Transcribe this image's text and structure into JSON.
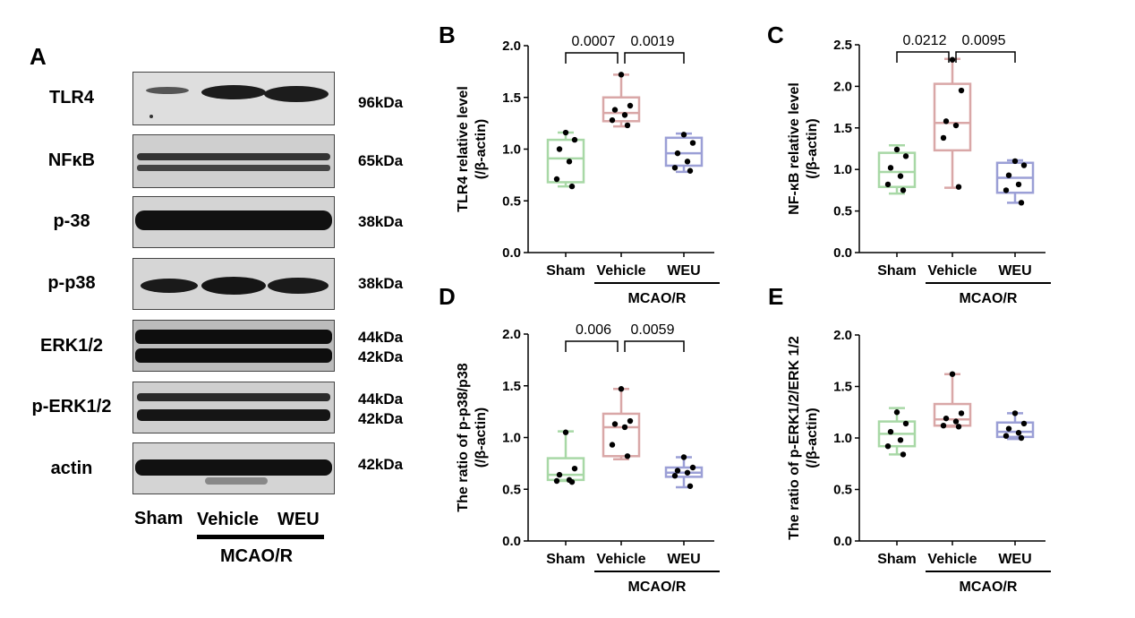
{
  "panel_a": {
    "letter": "A",
    "rows": [
      {
        "protein": "TLR4",
        "kda": [
          "96kDa"
        ]
      },
      {
        "protein": "NFκB",
        "kda": [
          "65kDa"
        ]
      },
      {
        "protein": "p-38",
        "kda": [
          "38kDa"
        ]
      },
      {
        "protein": "p-p38",
        "kda": [
          "38kDa"
        ]
      },
      {
        "protein": "ERK1/2",
        "kda": [
          "44kDa",
          "42kDa"
        ]
      },
      {
        "protein": "p-ERK1/2",
        "kda": [
          "44kDa",
          "42kDa"
        ]
      },
      {
        "protein": "actin",
        "kda": [
          "42kDa"
        ]
      }
    ],
    "lanes": [
      "Sham",
      "Vehicle",
      "WEU"
    ],
    "group_label": "MCAO/R"
  },
  "chart_data": [
    {
      "panel": "B",
      "type": "box",
      "ylabel_line1": "TLR4 relative level",
      "ylabel_line2": "(/β-actin)",
      "ylim": [
        0,
        2.0
      ],
      "yticks": [
        "0.0",
        "0.5",
        "1.0",
        "1.5",
        "2.0"
      ],
      "categories": [
        "Sham",
        "Vehicle",
        "WEU"
      ],
      "group_label": "MCAO/R",
      "colors": [
        "#a8d8a6",
        "#d9a7a7",
        "#9b9fd6"
      ],
      "boxes": [
        {
          "min": 0.64,
          "q1": 0.68,
          "median": 0.91,
          "q3": 1.09,
          "max": 1.16,
          "points": [
            1.16,
            1.09,
            1.0,
            0.88,
            0.71,
            0.64
          ]
        },
        {
          "min": 1.22,
          "q1": 1.27,
          "median": 1.35,
          "q3": 1.5,
          "max": 1.72,
          "points": [
            1.72,
            1.42,
            1.38,
            1.33,
            1.28,
            1.23
          ]
        },
        {
          "min": 0.78,
          "q1": 0.84,
          "median": 0.96,
          "q3": 1.11,
          "max": 1.15,
          "points": [
            1.14,
            1.06,
            0.96,
            0.88,
            0.82,
            0.79
          ]
        }
      ],
      "comparisons": [
        {
          "from": 0,
          "to": 1,
          "label": "0.0007"
        },
        {
          "from": 1,
          "to": 2,
          "label": "0.0019"
        }
      ]
    },
    {
      "panel": "C",
      "type": "box",
      "ylabel_line1": "NF-κB relative level",
      "ylabel_line2": "(/β-actin)",
      "ylim": [
        0,
        2.5
      ],
      "yticks": [
        "0.0",
        "0.5",
        "1.0",
        "1.5",
        "2.0",
        "2.5"
      ],
      "categories": [
        "Sham",
        "Vehicle",
        "WEU"
      ],
      "group_label": "MCAO/R",
      "colors": [
        "#a8d8a6",
        "#d9a7a7",
        "#9b9fd6"
      ],
      "boxes": [
        {
          "min": 0.71,
          "q1": 0.79,
          "median": 0.97,
          "q3": 1.2,
          "max": 1.29,
          "points": [
            1.24,
            1.16,
            1.02,
            0.92,
            0.82,
            0.75
          ]
        },
        {
          "min": 0.78,
          "q1": 1.23,
          "median": 1.56,
          "q3": 2.03,
          "max": 2.33,
          "points": [
            2.32,
            1.95,
            1.58,
            1.53,
            1.38,
            0.79
          ]
        },
        {
          "min": 0.6,
          "q1": 0.72,
          "median": 0.9,
          "q3": 1.08,
          "max": 1.11,
          "points": [
            1.1,
            1.05,
            0.93,
            0.82,
            0.75,
            0.6
          ]
        }
      ],
      "comparisons": [
        {
          "from": 0,
          "to": 1,
          "label": "0.0212"
        },
        {
          "from": 1,
          "to": 2,
          "label": "0.0095"
        }
      ]
    },
    {
      "panel": "D",
      "type": "box",
      "ylabel_line1": "The ratio of p-p38/p38",
      "ylabel_line2": "(/β-actin)",
      "ylim": [
        0,
        2.0
      ],
      "yticks": [
        "0.0",
        "0.5",
        "1.0",
        "1.5",
        "2.0"
      ],
      "categories": [
        "Sham",
        "Vehicle",
        "WEU"
      ],
      "group_label": "MCAO/R",
      "colors": [
        "#a8d8a6",
        "#d9a7a7",
        "#9b9fd6"
      ],
      "boxes": [
        {
          "min": 0.58,
          "q1": 0.59,
          "median": 0.64,
          "q3": 0.8,
          "max": 1.06,
          "points": [
            1.05,
            0.7,
            0.64,
            0.59,
            0.58,
            0.57
          ]
        },
        {
          "min": 0.79,
          "q1": 0.82,
          "median": 1.1,
          "q3": 1.23,
          "max": 1.47,
          "points": [
            1.47,
            1.16,
            1.13,
            1.1,
            0.93,
            0.82
          ]
        },
        {
          "min": 0.52,
          "q1": 0.62,
          "median": 0.66,
          "q3": 0.71,
          "max": 0.81,
          "points": [
            0.81,
            0.71,
            0.68,
            0.66,
            0.63,
            0.53
          ]
        }
      ],
      "comparisons": [
        {
          "from": 0,
          "to": 1,
          "label": "0.006"
        },
        {
          "from": 1,
          "to": 2,
          "label": "0.0059"
        }
      ]
    },
    {
      "panel": "E",
      "type": "box",
      "ylabel_line1": "The ratio of p-ERK1/2/ERK 1/2",
      "ylabel_line2": "(/β-actin)",
      "ylim": [
        0,
        2.0
      ],
      "yticks": [
        "0.0",
        "0.5",
        "1.0",
        "1.5",
        "2.0"
      ],
      "categories": [
        "Sham",
        "Vehicle",
        "WEU"
      ],
      "group_label": "MCAO/R",
      "colors": [
        "#a8d8a6",
        "#d9a7a7",
        "#9b9fd6"
      ],
      "boxes": [
        {
          "min": 0.84,
          "q1": 0.92,
          "median": 1.04,
          "q3": 1.16,
          "max": 1.29,
          "points": [
            1.25,
            1.14,
            1.06,
            0.98,
            0.92,
            0.84
          ]
        },
        {
          "min": 1.11,
          "q1": 1.12,
          "median": 1.18,
          "q3": 1.33,
          "max": 1.62,
          "points": [
            1.62,
            1.24,
            1.19,
            1.16,
            1.12,
            1.11
          ]
        },
        {
          "min": 0.99,
          "q1": 1.01,
          "median": 1.06,
          "q3": 1.15,
          "max": 1.24,
          "points": [
            1.24,
            1.14,
            1.09,
            1.05,
            1.02,
            1.0
          ]
        }
      ],
      "comparisons": []
    }
  ]
}
